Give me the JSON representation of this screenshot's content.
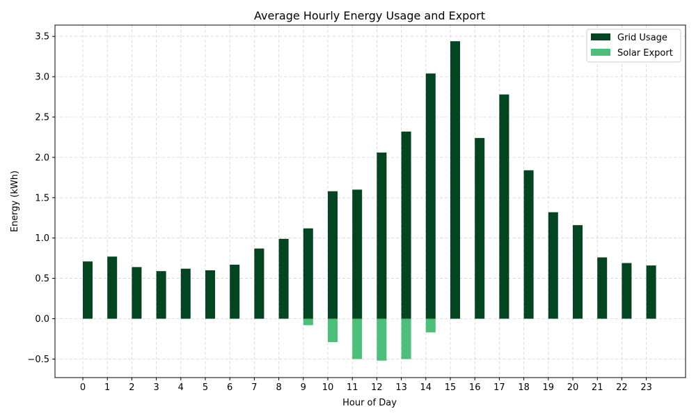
{
  "chart_data": {
    "type": "bar",
    "title": "Average Hourly Energy Usage and Export",
    "xlabel": "Hour of Day",
    "ylabel": "Energy (kWh)",
    "categories": [
      "0",
      "1",
      "2",
      "3",
      "4",
      "5",
      "6",
      "7",
      "8",
      "9",
      "10",
      "11",
      "12",
      "13",
      "14",
      "15",
      "16",
      "17",
      "18",
      "19",
      "20",
      "21",
      "22",
      "23"
    ],
    "series": [
      {
        "name": "Grid Usage",
        "color": "#034421",
        "values": [
          0.71,
          0.77,
          0.64,
          0.59,
          0.62,
          0.6,
          0.67,
          0.87,
          0.99,
          1.12,
          1.58,
          1.6,
          2.06,
          2.32,
          3.04,
          3.44,
          2.24,
          2.78,
          1.84,
          1.32,
          1.16,
          0.76,
          0.69,
          0.66
        ]
      },
      {
        "name": "Solar Export",
        "color": "#4cbf7b",
        "values": [
          0,
          0,
          0,
          0,
          0,
          0,
          0,
          0,
          0,
          -0.08,
          -0.29,
          -0.5,
          -0.52,
          -0.5,
          -0.17,
          0,
          0,
          0,
          0,
          0,
          0,
          0,
          0,
          0
        ]
      }
    ],
    "ylim": [
      -0.73,
      3.64
    ],
    "yticks": [
      "−0.5",
      "0.0",
      "0.5",
      "1.0",
      "1.5",
      "2.0",
      "2.5",
      "3.0",
      "3.5"
    ],
    "grid": true,
    "legend_position": "top-right"
  }
}
